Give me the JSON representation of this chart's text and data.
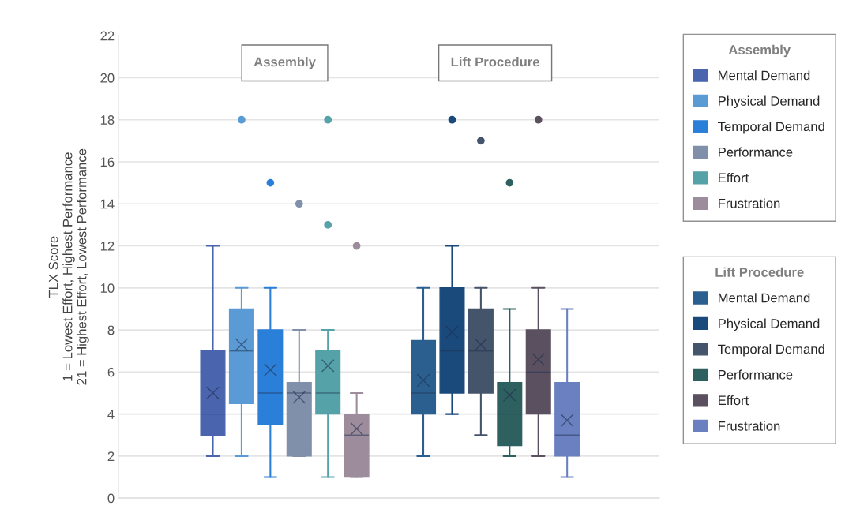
{
  "chart_data": {
    "type": "box",
    "ylabel": "TLX Score\n1 = Lowest Effort, Highest Performance\n21 = Highest Effort, Lowest Performance",
    "categories": [
      "Assembly",
      "Lift Procedure"
    ],
    "ylim": [
      0,
      22
    ],
    "yticks": [
      0,
      2,
      4,
      6,
      8,
      10,
      12,
      14,
      16,
      18,
      20,
      22
    ],
    "grid": "y",
    "legend": "right",
    "marker": "circle",
    "series": [
      {
        "name": "Mental Demand",
        "color": "#4a64ae",
        "boxes": [
          {
            "low": 2,
            "q1": 3,
            "median": 4,
            "q3": 7,
            "high": 12,
            "mean": 5
          },
          null
        ]
      },
      {
        "name": "Physical Demand",
        "color": "#5b9bd5",
        "boxes": [
          {
            "low": 2,
            "q1": 4.5,
            "median": 7,
            "q3": 9,
            "high": 10,
            "mean": 7.3,
            "outliers": [
              18
            ]
          },
          null
        ]
      },
      {
        "name": "Temporal Demand",
        "color": "#2a7fd8",
        "boxes": [
          {
            "low": 1,
            "q1": 3.5,
            "median": 5,
            "q3": 8,
            "high": 10,
            "mean": 6.1,
            "outliers": [
              15
            ]
          },
          null
        ]
      },
      {
        "name": "Performance",
        "color": "#8090aa",
        "boxes": [
          {
            "low": 2,
            "q1": 2,
            "median": 5,
            "q3": 5.5,
            "high": 8,
            "mean": 4.8,
            "outliers": [
              14
            ]
          },
          null
        ]
      },
      {
        "name": "Effort",
        "color": "#55a2a8",
        "boxes": [
          {
            "low": 1,
            "q1": 4,
            "median": 5,
            "q3": 7,
            "high": 8,
            "mean": 6.3,
            "outliers": [
              13,
              18
            ]
          },
          null
        ]
      },
      {
        "name": "Frustration",
        "color": "#9c8c9c",
        "boxes": [
          {
            "low": 1,
            "q1": 1,
            "median": 3,
            "q3": 4,
            "high": 5,
            "mean": 3.3,
            "outliers": [
              12
            ]
          },
          null
        ]
      },
      {
        "name": "Mental Demand",
        "color": "#2a5f90",
        "boxes": [
          null,
          {
            "low": 2,
            "q1": 4,
            "median": 5,
            "q3": 7.5,
            "high": 10,
            "mean": 5.6
          }
        ]
      },
      {
        "name": "Physical Demand",
        "color": "#1a4a7c",
        "boxes": [
          null,
          {
            "low": 4,
            "q1": 5,
            "median": 7,
            "q3": 10,
            "high": 12,
            "mean": 7.9,
            "outliers": [
              18
            ]
          }
        ]
      },
      {
        "name": "Temporal Demand",
        "color": "#44546a",
        "boxes": [
          null,
          {
            "low": 3,
            "q1": 5,
            "median": 7,
            "q3": 9,
            "high": 10,
            "mean": 7.3,
            "outliers": [
              17
            ]
          }
        ]
      },
      {
        "name": "Performance",
        "color": "#2e6060",
        "boxes": [
          null,
          {
            "low": 2,
            "q1": 2.5,
            "median": 4,
            "q3": 5.5,
            "high": 9,
            "mean": 4.9,
            "outliers": [
              15
            ]
          }
        ]
      },
      {
        "name": "Effort",
        "color": "#5a5060",
        "boxes": [
          null,
          {
            "low": 2,
            "q1": 4,
            "median": 6,
            "q3": 8,
            "high": 10,
            "mean": 6.6,
            "outliers": [
              18
            ]
          }
        ]
      },
      {
        "name": "Frustration",
        "color": "#6a80c0",
        "boxes": [
          null,
          {
            "low": 1,
            "q1": 2,
            "median": 3,
            "q3": 5.5,
            "high": 9,
            "mean": 3.7
          }
        ]
      }
    ]
  }
}
